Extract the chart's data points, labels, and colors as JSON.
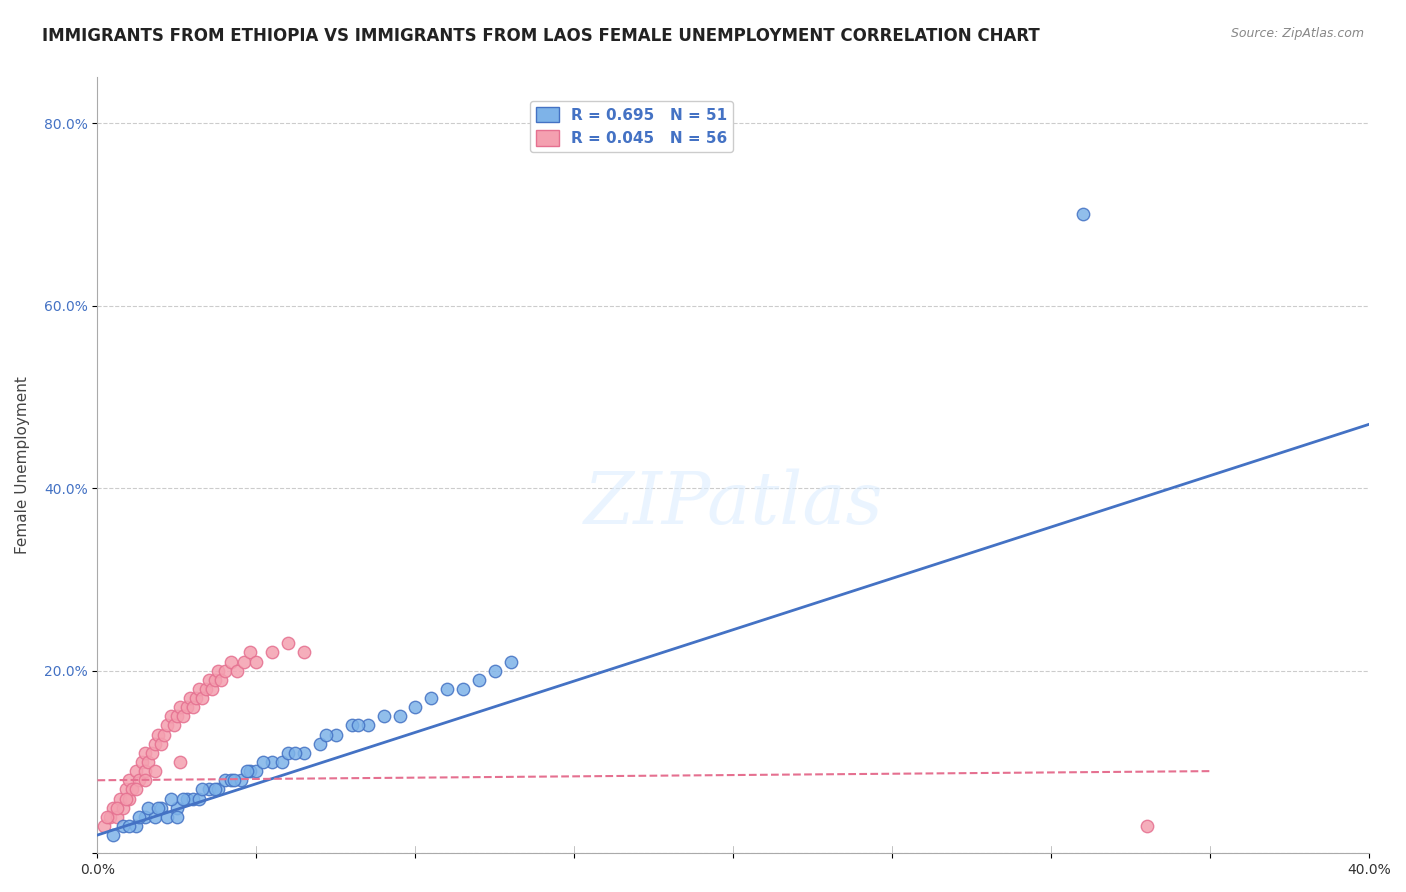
{
  "title": "IMMIGRANTS FROM ETHIOPIA VS IMMIGRANTS FROM LAOS FEMALE UNEMPLOYMENT CORRELATION CHART",
  "source": "Source: ZipAtlas.com",
  "xlabel": "",
  "ylabel": "Female Unemployment",
  "xlim": [
    0.0,
    0.4
  ],
  "ylim": [
    0.0,
    0.85
  ],
  "xticks": [
    0.0,
    0.05,
    0.1,
    0.15,
    0.2,
    0.25,
    0.3,
    0.35,
    0.4
  ],
  "yticks": [
    0.0,
    0.2,
    0.4,
    0.6,
    0.8
  ],
  "ytick_labels": [
    "",
    "20.0%",
    "40.0%",
    "60.0%",
    "80.0%"
  ],
  "xtick_labels": [
    "0.0%",
    "",
    "",
    "",
    "",
    "",
    "",
    "",
    "40.0%"
  ],
  "blue_R": 0.695,
  "blue_N": 51,
  "pink_R": 0.045,
  "pink_N": 56,
  "blue_color": "#7EB3E8",
  "pink_color": "#F4A0B0",
  "blue_line_color": "#4472C4",
  "pink_line_color": "#E57090",
  "watermark": "ZIPatlas",
  "background_color": "#FFFFFF",
  "grid_color": "#CCCCCC",
  "axis_color": "#AAAAAA",
  "title_fontsize": 12,
  "label_fontsize": 11,
  "legend_text_color": "#4472C4",
  "blue_scatter_x": [
    0.005,
    0.008,
    0.012,
    0.015,
    0.018,
    0.02,
    0.022,
    0.025,
    0.025,
    0.028,
    0.03,
    0.032,
    0.035,
    0.038,
    0.04,
    0.042,
    0.045,
    0.048,
    0.05,
    0.055,
    0.058,
    0.06,
    0.065,
    0.07,
    0.075,
    0.08,
    0.085,
    0.09,
    0.095,
    0.1,
    0.105,
    0.11,
    0.115,
    0.12,
    0.125,
    0.13,
    0.01,
    0.013,
    0.016,
    0.019,
    0.023,
    0.027,
    0.033,
    0.037,
    0.043,
    0.047,
    0.052,
    0.062,
    0.072,
    0.082,
    0.31
  ],
  "blue_scatter_y": [
    0.02,
    0.03,
    0.03,
    0.04,
    0.04,
    0.05,
    0.04,
    0.05,
    0.04,
    0.06,
    0.06,
    0.06,
    0.07,
    0.07,
    0.08,
    0.08,
    0.08,
    0.09,
    0.09,
    0.1,
    0.1,
    0.11,
    0.11,
    0.12,
    0.13,
    0.14,
    0.14,
    0.15,
    0.15,
    0.16,
    0.17,
    0.18,
    0.18,
    0.19,
    0.2,
    0.21,
    0.03,
    0.04,
    0.05,
    0.05,
    0.06,
    0.06,
    0.07,
    0.07,
    0.08,
    0.09,
    0.1,
    0.11,
    0.13,
    0.14,
    0.7
  ],
  "pink_scatter_x": [
    0.002,
    0.004,
    0.005,
    0.006,
    0.007,
    0.008,
    0.009,
    0.01,
    0.01,
    0.011,
    0.012,
    0.013,
    0.014,
    0.015,
    0.015,
    0.016,
    0.017,
    0.018,
    0.019,
    0.02,
    0.021,
    0.022,
    0.023,
    0.024,
    0.025,
    0.026,
    0.027,
    0.028,
    0.029,
    0.03,
    0.031,
    0.032,
    0.033,
    0.034,
    0.035,
    0.036,
    0.037,
    0.038,
    0.039,
    0.04,
    0.042,
    0.044,
    0.046,
    0.048,
    0.05,
    0.055,
    0.06,
    0.065,
    0.003,
    0.006,
    0.009,
    0.012,
    0.015,
    0.018,
    0.026,
    0.33
  ],
  "pink_scatter_y": [
    0.03,
    0.04,
    0.05,
    0.04,
    0.06,
    0.05,
    0.07,
    0.06,
    0.08,
    0.07,
    0.09,
    0.08,
    0.1,
    0.09,
    0.11,
    0.1,
    0.11,
    0.12,
    0.13,
    0.12,
    0.13,
    0.14,
    0.15,
    0.14,
    0.15,
    0.16,
    0.15,
    0.16,
    0.17,
    0.16,
    0.17,
    0.18,
    0.17,
    0.18,
    0.19,
    0.18,
    0.19,
    0.2,
    0.19,
    0.2,
    0.21,
    0.2,
    0.21,
    0.22,
    0.21,
    0.22,
    0.23,
    0.22,
    0.04,
    0.05,
    0.06,
    0.07,
    0.08,
    0.09,
    0.1,
    0.03
  ],
  "blue_line_x": [
    0.0,
    0.4
  ],
  "blue_line_y": [
    0.02,
    0.47
  ],
  "pink_line_x": [
    0.0,
    0.35
  ],
  "pink_line_y": [
    0.08,
    0.09
  ]
}
